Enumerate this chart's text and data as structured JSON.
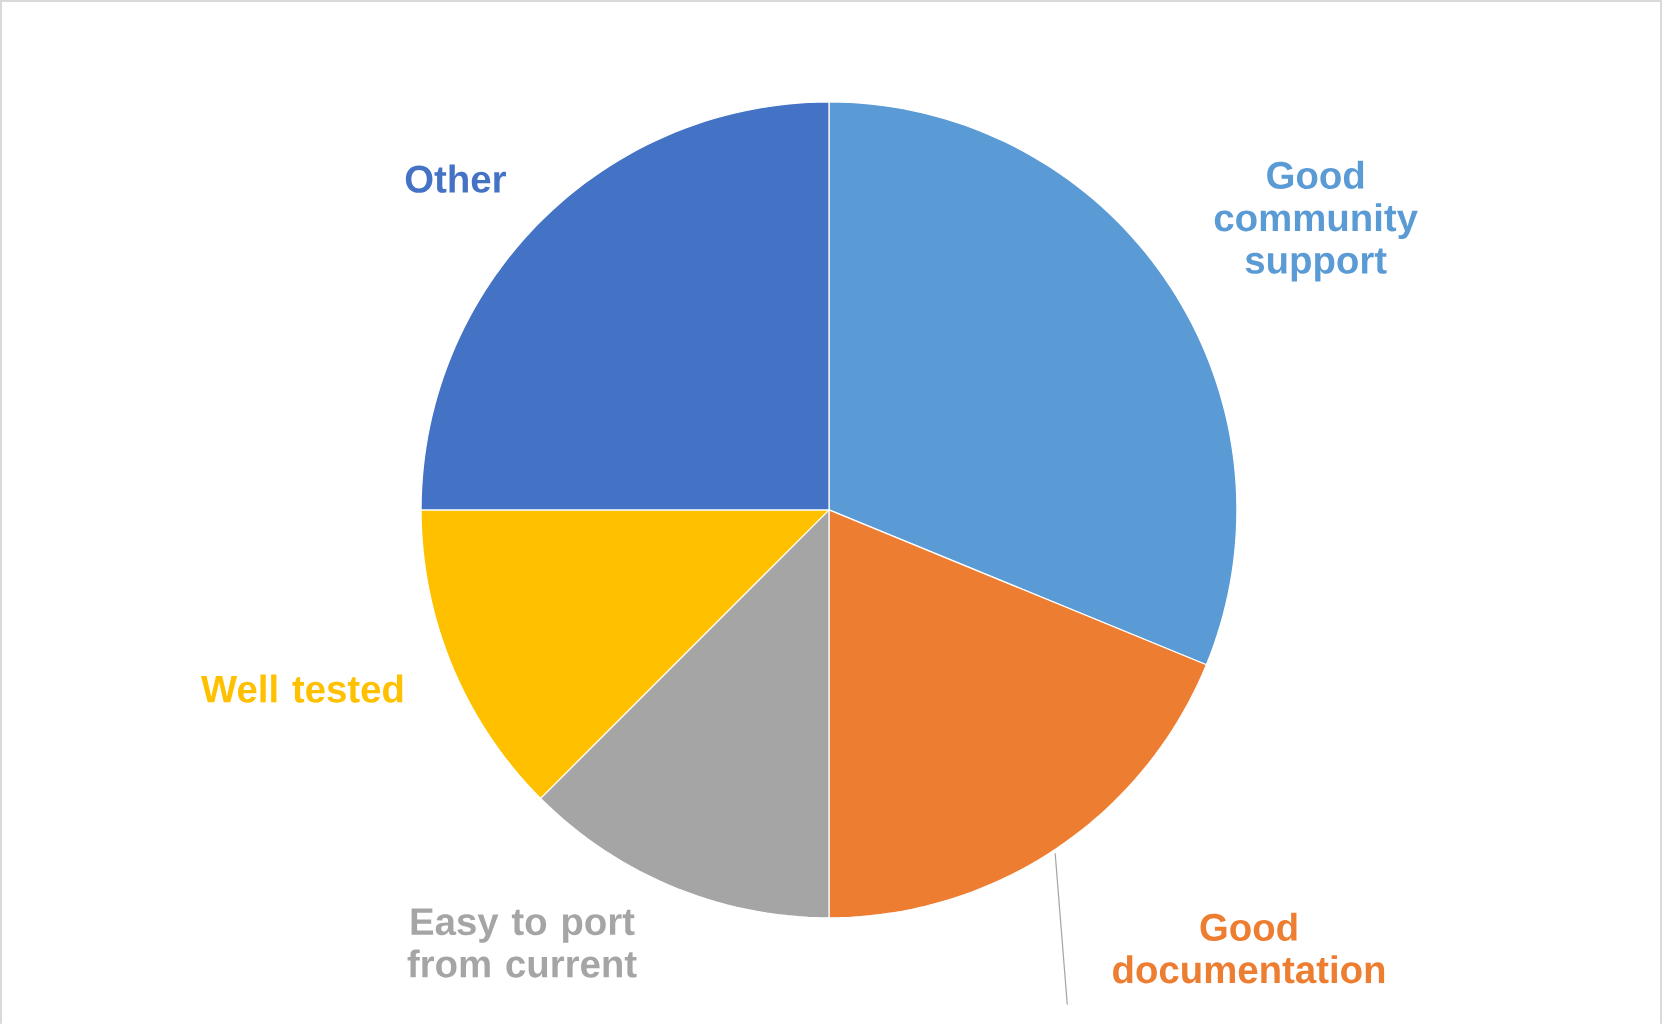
{
  "chart_data": {
    "type": "pie",
    "categories": [
      "Good community support",
      "Good documentation",
      "Easy to port from current",
      "Well tested",
      "Other"
    ],
    "values": [
      31.2,
      18.8,
      12.5,
      12.5,
      25
    ],
    "colors": [
      "#5b9bd5",
      "#ed7d31",
      "#a5a5a5",
      "#ffc000",
      "#4472c4"
    ]
  }
}
